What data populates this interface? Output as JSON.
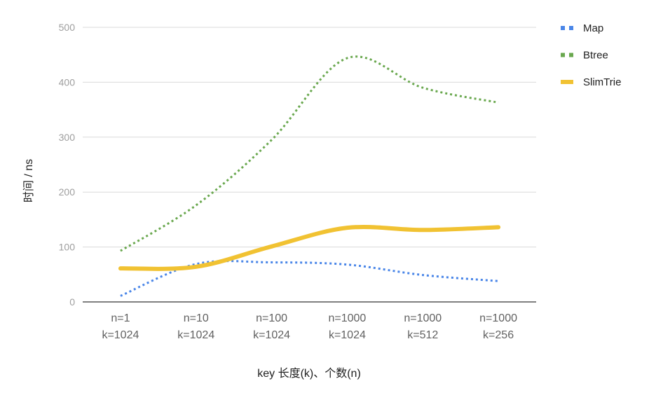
{
  "chart_data": {
    "type": "line",
    "title": "",
    "xlabel": "key 长度(k)、个数(n)",
    "ylabel": "时间 / ns",
    "ylim": [
      0,
      500
    ],
    "yticks": [
      "0",
      "100",
      "200",
      "300",
      "400",
      "500"
    ],
    "grid": true,
    "smooth": true,
    "legend_position": "right",
    "categories": [
      [
        "n=1",
        "k=1024"
      ],
      [
        "n=10",
        "k=1024"
      ],
      [
        "n=100",
        "k=1024"
      ],
      [
        "n=1000",
        "k=1024"
      ],
      [
        "n=1000",
        "k=512"
      ],
      [
        "n=1000",
        "k=256"
      ]
    ],
    "series": [
      {
        "name": "Map",
        "values": [
          11,
          69,
          72,
          68,
          49,
          38
        ],
        "color": "#4a86e8",
        "style": "dotted"
      },
      {
        "name": "Btree",
        "values": [
          93,
          176,
          295,
          444,
          390,
          363
        ],
        "color": "#6aa84f",
        "style": "dotted"
      },
      {
        "name": "SlimTrie",
        "values": [
          61,
          64,
          101,
          135,
          131,
          136
        ],
        "color": "#f1c232",
        "style": "solid"
      }
    ]
  }
}
